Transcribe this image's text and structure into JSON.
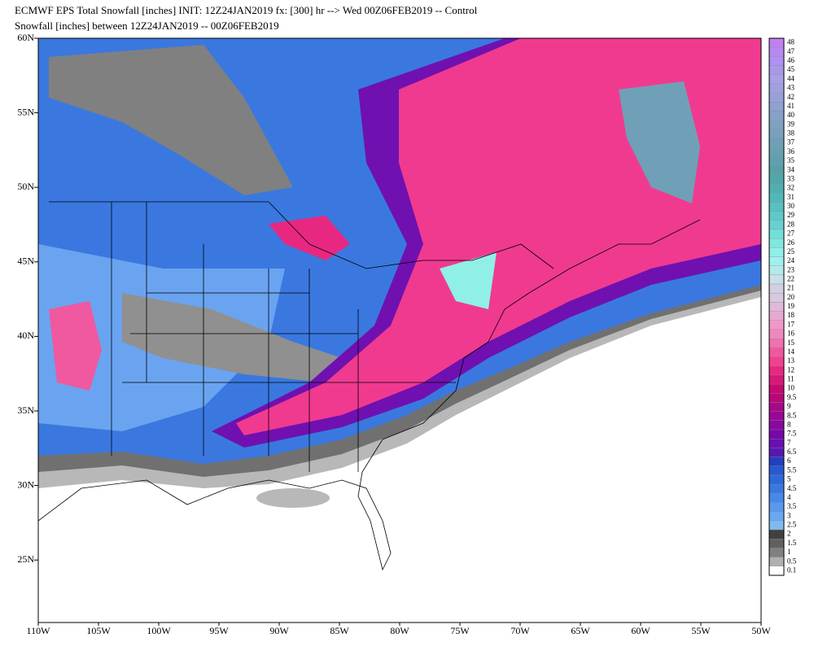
{
  "header": {
    "title": "ECMWF EPS Total Snowfall [inches] INIT: 12Z24JAN2019 fx: [300] hr --> Wed 00Z06FEB2019 -- Control",
    "subtitle": "Snowfall [inches] between 12Z24JAN2019 -- 00Z06FEB2019"
  },
  "map": {
    "lat_labels": [
      "60N",
      "55N",
      "50N",
      "45N",
      "40N",
      "35N",
      "30N",
      "25N"
    ],
    "lon_labels": [
      "110W",
      "105W",
      "100W",
      "95W",
      "90W",
      "85W",
      "80W",
      "75W",
      "70W",
      "65W",
      "60W",
      "55W",
      "50W"
    ]
  },
  "colorbar": {
    "labels": [
      48,
      47,
      46,
      45,
      44,
      43,
      42,
      41,
      40,
      39,
      38,
      37,
      36,
      35,
      34,
      33,
      32,
      31,
      30,
      29,
      28,
      27,
      26,
      25,
      24,
      23,
      22,
      21,
      20,
      19,
      18,
      17,
      16,
      15,
      14,
      13,
      12,
      11,
      10,
      9.5,
      9,
      8.5,
      8,
      7.5,
      7,
      6.5,
      6,
      5.5,
      5,
      4.5,
      4,
      3.5,
      3,
      2.5,
      2,
      1.5,
      1,
      0.5,
      0.1
    ],
    "colors": [
      "#c080f0",
      "#b888f0",
      "#b090f0",
      "#a898e8",
      "#a8a0e8",
      "#a0a0e0",
      "#98a0d8",
      "#90a0d0",
      "#88a0c8",
      "#80a0c0",
      "#78a0c0",
      "#70a0b8",
      "#68a0b0",
      "#60a0b0",
      "#58a0a8",
      "#50a8a8",
      "#50b0b0",
      "#50b8b8",
      "#58c0c0",
      "#60c8c8",
      "#68d0d0",
      "#70e0d8",
      "#80e8e0",
      "#90f0e8",
      "#a0f0f0",
      "#b8e8e8",
      "#c8e0e8",
      "#d0d0e0",
      "#d8c8e0",
      "#e0b8d8",
      "#e8a8d0",
      "#f098c8",
      "#f088c0",
      "#f070b0",
      "#f058a0",
      "#f04090",
      "#e82880",
      "#d81878",
      "#c80870",
      "#b80878",
      "#a80888",
      "#980898",
      "#8808a0",
      "#7808a8",
      "#6810b0",
      "#5818b0",
      "#2040c0",
      "#2858d0",
      "#3068d8",
      "#3878e0",
      "#4888e8",
      "#5898ee",
      "#68a8f0",
      "#80b8f0",
      "#404040",
      "#606060",
      "#808080",
      "#b0b0b0",
      "#ffffff"
    ]
  }
}
